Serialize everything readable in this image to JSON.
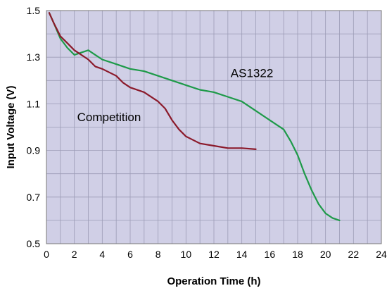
{
  "chart_data": {
    "type": "line",
    "xlabel": "Operation Time (h)",
    "ylabel": "Input Voltage (V)",
    "xlim": [
      0,
      24
    ],
    "ylim": [
      0.5,
      1.5
    ],
    "xticks": [
      0,
      2,
      4,
      6,
      8,
      10,
      12,
      14,
      16,
      18,
      20,
      22,
      24
    ],
    "yticks": [
      0.5,
      0.7,
      0.9,
      1.1,
      1.3,
      1.5
    ],
    "ytick_labels": [
      "0.5",
      "0.7",
      "0.9",
      "1.1",
      "1.3",
      "1.5"
    ],
    "grid": true,
    "colors": {
      "plot_background": "#d0cfe6",
      "grid": "#9c9cb6",
      "border": "#777777"
    },
    "series": [
      {
        "name": "AS1322",
        "color": "#1e9a49",
        "x": [
          0.2,
          0.5,
          1,
          1.5,
          2,
          2.5,
          3,
          3.5,
          4,
          5,
          6,
          7,
          8,
          9,
          10,
          11,
          12,
          13,
          14,
          15,
          16,
          17,
          17.5,
          18,
          18.5,
          19,
          19.5,
          20,
          20.5,
          21
        ],
        "y": [
          1.49,
          1.45,
          1.38,
          1.34,
          1.31,
          1.32,
          1.33,
          1.31,
          1.29,
          1.27,
          1.25,
          1.24,
          1.22,
          1.2,
          1.18,
          1.16,
          1.15,
          1.13,
          1.11,
          1.07,
          1.03,
          0.99,
          0.94,
          0.88,
          0.8,
          0.73,
          0.67,
          0.63,
          0.61,
          0.6
        ]
      },
      {
        "name": "Competition",
        "color": "#8b1a2b",
        "x": [
          0.2,
          0.5,
          1,
          1.5,
          2,
          3,
          3.5,
          4,
          5,
          5.5,
          6,
          7,
          8,
          8.5,
          9,
          9.5,
          10,
          11,
          12,
          13,
          14,
          15
        ],
        "y": [
          1.49,
          1.45,
          1.39,
          1.36,
          1.33,
          1.29,
          1.26,
          1.25,
          1.22,
          1.19,
          1.17,
          1.15,
          1.11,
          1.08,
          1.03,
          0.99,
          0.96,
          0.93,
          0.92,
          0.91,
          0.91,
          0.905
        ]
      }
    ],
    "annotations": [
      {
        "text": "AS1322",
        "x": 13.2,
        "y": 1.215
      },
      {
        "text": "Competition",
        "x": 2.2,
        "y": 1.025
      }
    ]
  }
}
